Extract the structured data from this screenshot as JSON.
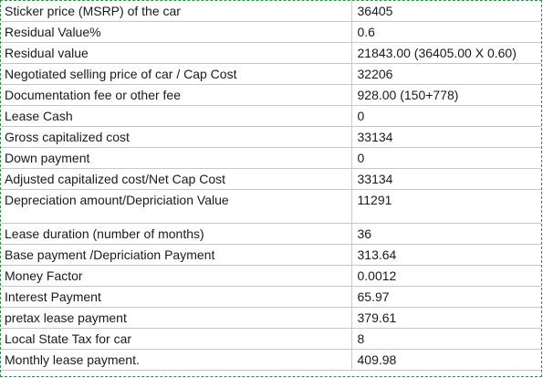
{
  "rows": [
    {
      "label": "Sticker price (MSRP) of the car",
      "value": "36405"
    },
    {
      "label": "Residual Value%",
      "value": "0.6"
    },
    {
      "label": "Residual value",
      "value": "21843.00 (36405.00 X 0.60)"
    },
    {
      "label": "Negotiated selling price of car / Cap Cost",
      "value": "32206"
    },
    {
      "label": "Documentation fee or other fee",
      "value": "928.00 (150+778)"
    },
    {
      "label": "Lease Cash",
      "value": "0"
    },
    {
      "label": "Gross capitalized cost",
      "value": "33134"
    },
    {
      "label": "Down payment",
      "value": "0"
    },
    {
      "label": "Adjusted capitalized cost/Net Cap Cost",
      "value": "33134"
    },
    {
      "label": "Depreciation amount/Depriciation Value",
      "value": "11291"
    },
    {
      "label": "",
      "value": ""
    },
    {
      "label": "Lease duration (number of months)",
      "value": "36"
    },
    {
      "label": "Base payment /Depriciation Payment",
      "value": "313.64"
    },
    {
      "label": "Money Factor",
      "value": "0.0012"
    },
    {
      "label": "Interest Payment",
      "value": "65.97"
    },
    {
      "label": "pretax lease payment",
      "value": "379.61"
    },
    {
      "label": "Local State Tax for car",
      "value": "8"
    },
    {
      "label": "Monthly lease payment.",
      "value": "409.98"
    }
  ]
}
